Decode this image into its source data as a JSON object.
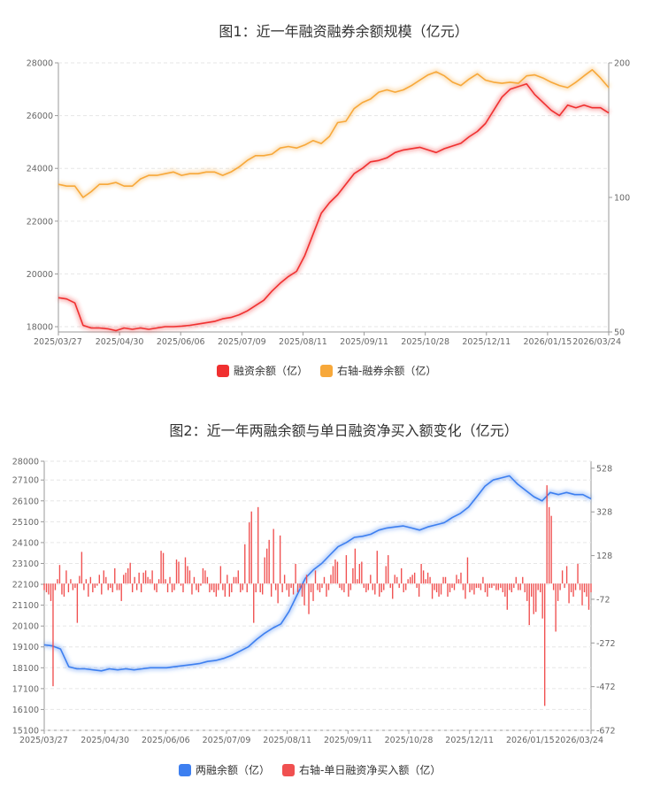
{
  "chart_data": [
    {
      "type": "line",
      "title": "图1：近一年融资融券余额规模（亿元）",
      "x_ticks": [
        "2025/03/27",
        "2025/04/30",
        "2025/06/06",
        "2025/07/09",
        "2025/08/11",
        "2025/09/11",
        "2025/10/28",
        "2025/12/11",
        "2026/01/15",
        "2026/03/24"
      ],
      "y_left": {
        "ticks": [
          18000,
          20000,
          22000,
          24000,
          26000,
          28000
        ],
        "range": [
          17800,
          28000
        ]
      },
      "y_right": {
        "ticks": [
          50,
          100,
          200
        ],
        "scale": "log",
        "range": [
          50,
          200
        ]
      },
      "grid": true,
      "legend_position": "bottom",
      "series": [
        {
          "name": "融资余额（亿）",
          "axis": "left",
          "color": "#f03030",
          "values": [
            19100,
            19050,
            18900,
            18050,
            17950,
            17950,
            17920,
            17850,
            17950,
            17900,
            17950,
            17900,
            17950,
            18000,
            18000,
            18020,
            18050,
            18100,
            18150,
            18200,
            18300,
            18350,
            18450,
            18600,
            18800,
            19000,
            19350,
            19650,
            19900,
            20100,
            20700,
            21500,
            22300,
            22700,
            23000,
            23400,
            23800,
            24000,
            24250,
            24300,
            24400,
            24600,
            24700,
            24750,
            24800,
            24700,
            24600,
            24750,
            24850,
            24950,
            25200,
            25400,
            25700,
            26200,
            26700,
            27000,
            27100,
            27200,
            26800,
            26500,
            26200,
            26000,
            26400,
            26300,
            26400,
            26300,
            26300,
            26100
          ]
        },
        {
          "name": "右轴-融券余额（亿）",
          "axis": "right",
          "color": "#f7a83a",
          "values": [
            107,
            106,
            106,
            100,
            103,
            107,
            107,
            108,
            106,
            106,
            110,
            112,
            112,
            113,
            114,
            112,
            113,
            113,
            114,
            114,
            112,
            114,
            117,
            121,
            124,
            124,
            125,
            129,
            130,
            129,
            131,
            134,
            132,
            137,
            147,
            148,
            158,
            163,
            166,
            172,
            174,
            172,
            174,
            178,
            183,
            188,
            191,
            187,
            181,
            178,
            184,
            189,
            183,
            181,
            180,
            181,
            180,
            187,
            188,
            185,
            181,
            178,
            176,
            181,
            187,
            193,
            185,
            176
          ]
        }
      ]
    },
    {
      "type": "bar",
      "title": "图2：近一年两融余额与单日融资净买入额变化（亿元）",
      "x_ticks": [
        "2025/03/27",
        "2025/04/30",
        "2025/06/06",
        "2025/07/09",
        "2025/08/11",
        "2025/09/11",
        "2025/10/28",
        "2025/12/11",
        "2026/01/15",
        "2026/03/24"
      ],
      "y_left": {
        "ticks": [
          15100,
          16100,
          17100,
          18100,
          19100,
          20100,
          21100,
          22100,
          23100,
          24100,
          25100,
          26100,
          27100,
          28000
        ],
        "range": [
          15100,
          28000
        ]
      },
      "y_right": {
        "ticks": [
          -672,
          -472,
          -272,
          -72,
          128,
          328,
          528
        ],
        "range": [
          -672,
          560
        ]
      },
      "grid": true,
      "legend_position": "bottom",
      "series": [
        {
          "name": "两融余额（亿）",
          "axis": "left",
          "type": "line",
          "color": "#3d7ff0",
          "values": [
            19200,
            19150,
            19000,
            18150,
            18050,
            18050,
            18000,
            17950,
            18050,
            18000,
            18050,
            18000,
            18050,
            18100,
            18100,
            18100,
            18150,
            18200,
            18250,
            18300,
            18400,
            18450,
            18550,
            18700,
            18900,
            19100,
            19450,
            19750,
            20000,
            20200,
            20800,
            21600,
            22400,
            22800,
            23100,
            23500,
            23900,
            24100,
            24350,
            24400,
            24500,
            24700,
            24800,
            24850,
            24900,
            24800,
            24700,
            24850,
            24950,
            25050,
            25300,
            25500,
            25800,
            26300,
            26800,
            27100,
            27200,
            27300,
            26900,
            26600,
            26300,
            26100,
            26500,
            26400,
            26500,
            26400,
            26400,
            26200
          ]
        },
        {
          "name": "右轴-单日融资净买入额（亿）",
          "axis": "right",
          "type": "bar",
          "color": "#f05050",
          "values": [
            -30,
            -40,
            -50,
            -80,
            -470,
            -30,
            20,
            85,
            -50,
            -60,
            60,
            -40,
            20,
            -30,
            -20,
            -180,
            35,
            145,
            -30,
            20,
            -60,
            30,
            -40,
            -20,
            -10,
            40,
            -50,
            60,
            30,
            -30,
            -20,
            -40,
            70,
            -30,
            -30,
            -80,
            40,
            50,
            70,
            95,
            -40,
            30,
            -30,
            50,
            -40,
            50,
            60,
            30,
            20,
            60,
            -30,
            -40,
            20,
            150,
            140,
            20,
            -40,
            30,
            -40,
            -30,
            110,
            100,
            -10,
            -40,
            120,
            80,
            60,
            -50,
            30,
            -30,
            -40,
            -10,
            70,
            60,
            30,
            -40,
            -30,
            -40,
            -60,
            -30,
            80,
            -30,
            -60,
            40,
            -60,
            -40,
            30,
            30,
            60,
            -40,
            -30,
            180,
            -40,
            280,
            330,
            -180,
            -40,
            350,
            -40,
            -50,
            120,
            160,
            200,
            -60,
            250,
            -30,
            -90,
            220,
            -40,
            40,
            -30,
            -60,
            -20,
            -50,
            90,
            -40,
            -20,
            -60,
            -100,
            40,
            -140,
            -40,
            -80,
            60,
            -30,
            -40,
            -20,
            30,
            -60,
            -30,
            40,
            80,
            110,
            100,
            -20,
            -30,
            -40,
            130,
            -60,
            -30,
            70,
            160,
            20,
            90,
            100,
            -20,
            -40,
            -30,
            40,
            -30,
            -50,
            150,
            -60,
            -40,
            -30,
            80,
            130,
            -20,
            -70,
            40,
            30,
            -20,
            70,
            -40,
            -30,
            20,
            30,
            40,
            50,
            -20,
            -60,
            90,
            60,
            20,
            50,
            30,
            -70,
            -30,
            -40,
            -60,
            -50,
            30,
            30,
            -60,
            -40,
            -20,
            -30,
            40,
            20,
            50,
            -30,
            -70,
            120,
            -40,
            -30,
            -50,
            -20,
            -20,
            -30,
            30,
            -40,
            -60,
            -20,
            -20,
            -10,
            -30,
            -30,
            -20,
            -40,
            -60,
            -120,
            -30,
            -40,
            -20,
            30,
            -30,
            -30,
            30,
            -40,
            -80,
            -190,
            -60,
            -140,
            -130,
            -30,
            -40,
            -160,
            -560,
            450,
            350,
            310,
            -30,
            -220,
            -80,
            -30,
            60,
            -20,
            80,
            -90,
            -40,
            -60,
            -30,
            90,
            -30,
            -100,
            -40,
            -60,
            -120,
            -40
          ]
        }
      ]
    }
  ]
}
